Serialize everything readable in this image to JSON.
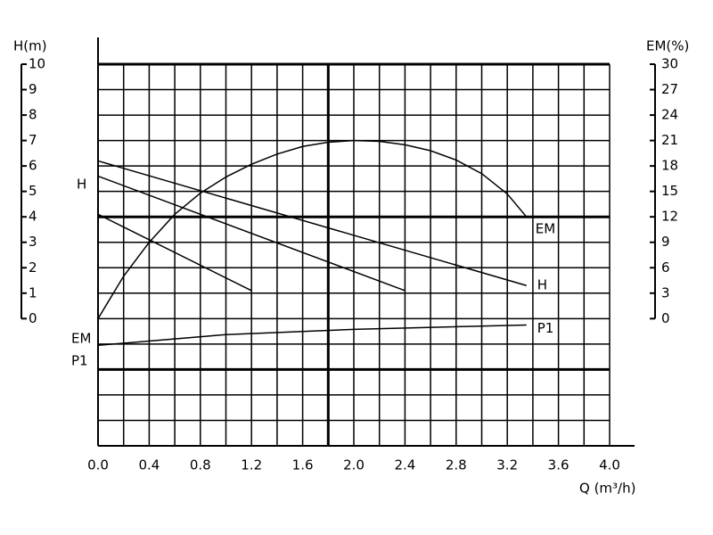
{
  "chart_data": {
    "type": "line",
    "x_label": "Q (m³/h)",
    "y_label": "H(m)",
    "y2_label": "EM(%)",
    "xlim": [
      0,
      4
    ],
    "xticks": [
      {
        "value": 0,
        "label": "0.0"
      },
      0.4,
      0.8,
      1.2,
      1.6,
      {
        "value": 2,
        "label": "2.0"
      },
      2.4,
      2.8,
      3.2,
      3.6,
      {
        "value": 4,
        "label": "4.0"
      }
    ],
    "xminor": [
      0.2,
      0.6,
      1.0,
      1.4,
      1.8,
      2.2,
      2.6,
      3.0,
      3.4,
      3.8
    ],
    "ylim": [
      -5,
      10
    ],
    "yticks": [
      0,
      1,
      2,
      3,
      4,
      5,
      6,
      7,
      8,
      9,
      10
    ],
    "yminor": [
      -1,
      -2,
      -3,
      -4
    ],
    "y2lim": [
      -15,
      30
    ],
    "y2ticks": [
      0,
      3,
      6,
      9,
      12,
      15,
      18,
      21,
      24,
      27,
      30
    ],
    "thick_x": [
      1.8
    ],
    "thick_y": [
      4,
      -2
    ],
    "grid": true,
    "side_labels": [
      "H",
      "EM",
      "P1"
    ],
    "series": [
      {
        "name": "EM",
        "color": "#000000",
        "axis": "y2",
        "x": [
          0,
          0.2,
          0.4,
          0.6,
          0.8,
          1.0,
          1.2,
          1.4,
          1.6,
          1.8,
          2.0,
          2.2,
          2.4,
          2.6,
          2.8,
          3.0,
          3.2,
          3.35
        ],
        "values": [
          0,
          5,
          9,
          12.3,
          14.8,
          16.7,
          18.2,
          19.4,
          20.3,
          20.8,
          21,
          20.9,
          20.5,
          19.8,
          18.7,
          17.1,
          14.7,
          12
        ]
      },
      {
        "name": "H",
        "color": "#000000",
        "axis": "y",
        "curves": [
          {
            "x": [
              0,
              3.35
            ],
            "values": [
              6.2,
              1.3
            ]
          },
          {
            "x": [
              0,
              2.4
            ],
            "values": [
              5.6,
              1.1
            ]
          },
          {
            "x": [
              0,
              1.2
            ],
            "values": [
              4.1,
              1.1
            ]
          }
        ]
      },
      {
        "name": "P1",
        "color": "#000000",
        "axis": "y",
        "x": [
          0,
          1,
          2,
          3.35
        ],
        "values": [
          -1.05,
          -0.63,
          -0.42,
          -0.25
        ]
      }
    ]
  }
}
